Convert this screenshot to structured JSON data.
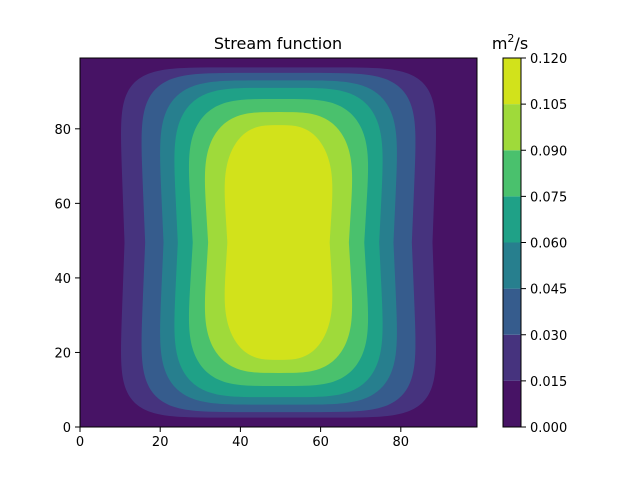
{
  "chart_data": {
    "type": "contourf",
    "title": "Stream function",
    "xlabel": "",
    "ylabel": "",
    "x_range": [
      0,
      99
    ],
    "y_range": [
      0,
      99
    ],
    "xticks": [
      0,
      20,
      40,
      60,
      80
    ],
    "yticks": [
      0,
      20,
      40,
      60,
      80
    ],
    "grid": false,
    "field": {
      "peak_value": 0.12,
      "peak_location": [
        49.5,
        49.5
      ],
      "boundary_value": 0.0
    },
    "colorbar": {
      "label_base": "m",
      "label_exponent": "2",
      "label_rest": "/s",
      "levels": [
        "0.000",
        "0.015",
        "0.030",
        "0.045",
        "0.060",
        "0.075",
        "0.090",
        "0.105",
        "0.120"
      ],
      "level_values": [
        0.0,
        0.015,
        0.03,
        0.045,
        0.06,
        0.075,
        0.09,
        0.105,
        0.12
      ],
      "colors": [
        "#471365",
        "#46337e",
        "#365c8d",
        "#277f8e",
        "#1fa187",
        "#4ac16d",
        "#9fda3a",
        "#d2e21b"
      ]
    }
  }
}
